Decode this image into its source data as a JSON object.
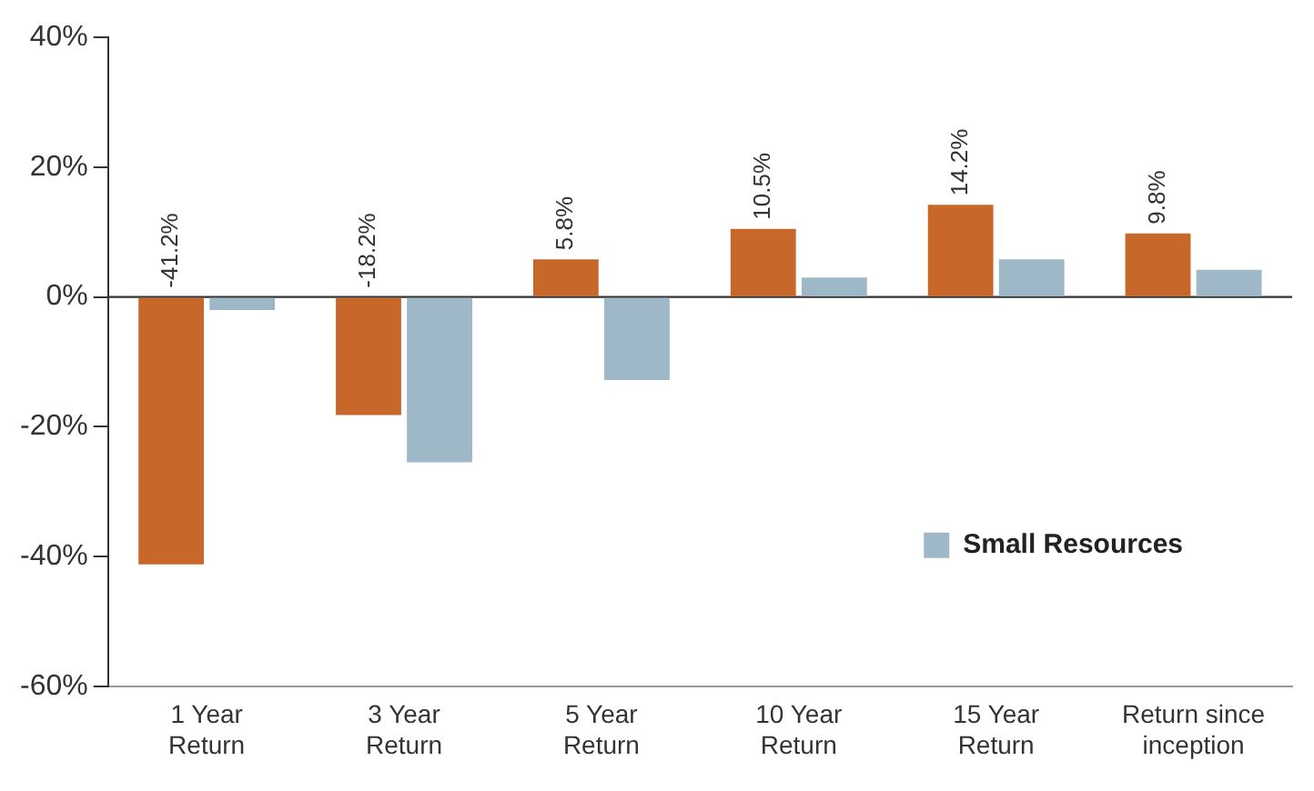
{
  "chart_data": {
    "type": "bar",
    "categories": [
      "1 Year\nReturn",
      "3 Year\nReturn",
      "5 Year\nReturn",
      "10 Year\nReturn",
      "15 Year\nReturn",
      "Return since\ninception"
    ],
    "series": [
      {
        "color": "#c8672a",
        "values": [
          -41.2,
          -18.2,
          5.8,
          10.5,
          14.2,
          9.8
        ],
        "value_labels": [
          "-41.2%",
          "-18.2%",
          "5.8%",
          "10.5%",
          "14.2%",
          "9.8%"
        ]
      },
      {
        "name": "Small Resources",
        "color": "#9fb8c8",
        "values": [
          -2,
          -25.5,
          -12.8,
          3,
          5.8,
          4.2
        ]
      }
    ],
    "ylim": [
      -60,
      40
    ],
    "yticks": [
      {
        "value": -60,
        "label": "-60%"
      },
      {
        "value": -40,
        "label": "-40%"
      },
      {
        "value": -20,
        "label": "-20%"
      },
      {
        "value": 0,
        "label": "0%"
      },
      {
        "value": 20,
        "label": "20%"
      },
      {
        "value": 40,
        "label": "40%"
      }
    ],
    "grid": false,
    "legend": "bottom right",
    "ref_lines": [
      {
        "axis": "y",
        "value": 0,
        "color": "#333333"
      }
    ]
  }
}
